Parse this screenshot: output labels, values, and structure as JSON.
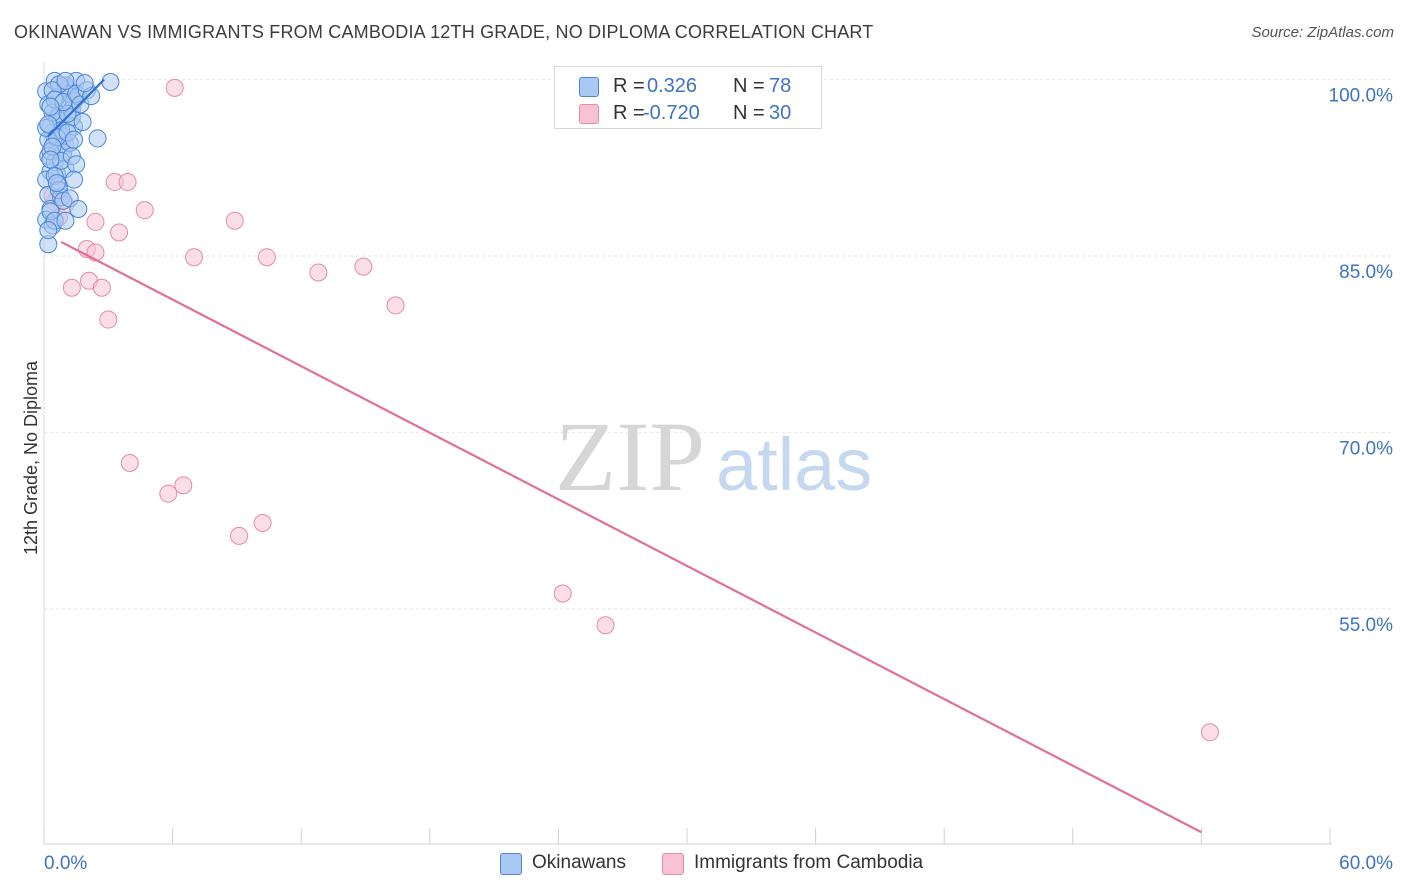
{
  "title": "OKINAWAN VS IMMIGRANTS FROM CAMBODIA 12TH GRADE, NO DIPLOMA CORRELATION CHART",
  "source": "Source: ZipAtlas.com",
  "watermark": {
    "zip": "ZIP",
    "atlas": "atlas"
  },
  "legend_top": [
    {
      "r_label": "R =",
      "r_value": "0.326",
      "n_label": "N =",
      "n_value": "78"
    },
    {
      "r_label": "R =",
      "r_value": "-0.720",
      "n_label": "N =",
      "n_value": "30"
    }
  ],
  "legend_bottom": [
    {
      "label": "Okinawans"
    },
    {
      "label": "Immigrants from Cambodia"
    }
  ],
  "chart_data": {
    "type": "scatter",
    "xlabel": "",
    "ylabel": "12th Grade, No Diploma",
    "xlim": [
      0,
      60
    ],
    "ylim": [
      35,
      101.5
    ],
    "x_tick_labels": [
      "0.0%",
      "60.0%"
    ],
    "y_ticks": [
      100,
      85,
      70,
      55
    ],
    "y_tick_labels": [
      "100.0%",
      "85.0%",
      "70.0%",
      "55.0%"
    ],
    "grid": true,
    "colors": {
      "okinawans_fill": "#a9c8f2",
      "okinawans_stroke": "#4a86d6",
      "okinawans_line": "#2f6fd0",
      "cambodia_fill": "#f7c3d3",
      "cambodia_stroke": "#e58aa8",
      "cambodia_line": "#e0709a",
      "tick_text": "#3d73c4",
      "grid": "#e6e6e6"
    },
    "series": [
      {
        "name": "Okinawans",
        "points": [
          [
            0.1,
            99.0
          ],
          [
            0.2,
            97.9
          ],
          [
            0.3,
            96.0
          ],
          [
            0.4,
            95.5
          ],
          [
            0.5,
            94.8
          ],
          [
            0.6,
            94.0
          ],
          [
            0.2,
            93.5
          ],
          [
            0.3,
            92.2
          ],
          [
            0.1,
            91.5
          ],
          [
            0.2,
            90.2
          ],
          [
            0.3,
            89.0
          ],
          [
            0.1,
            88.1
          ],
          [
            0.4,
            87.6
          ],
          [
            0.2,
            86.0
          ],
          [
            0.5,
            99.9
          ],
          [
            0.6,
            98.5
          ],
          [
            0.7,
            97.0
          ],
          [
            0.8,
            96.5
          ],
          [
            0.9,
            95.2
          ],
          [
            1.0,
            94.4
          ],
          [
            1.1,
            99.2
          ],
          [
            1.2,
            98.0
          ],
          [
            1.3,
            97.5
          ],
          [
            1.4,
            96.0
          ],
          [
            0.5,
            93.0
          ],
          [
            0.6,
            92.0
          ],
          [
            0.7,
            91.0
          ],
          [
            0.8,
            90.0
          ],
          [
            0.3,
            88.8
          ],
          [
            0.5,
            88.0
          ],
          [
            1.0,
            99.5
          ],
          [
            1.2,
            98.8
          ],
          [
            1.4,
            98.2
          ],
          [
            1.5,
            99.9
          ],
          [
            1.6,
            98.6
          ],
          [
            1.3,
            96.8
          ],
          [
            0.9,
            93.8
          ],
          [
            1.0,
            92.4
          ],
          [
            1.2,
            94.6
          ],
          [
            0.6,
            96.7
          ],
          [
            0.8,
            95.7
          ],
          [
            0.4,
            97.2
          ],
          [
            0.2,
            94.9
          ],
          [
            0.3,
            93.9
          ],
          [
            0.1,
            95.9
          ],
          [
            0.7,
            99.6
          ],
          [
            0.4,
            99.1
          ],
          [
            0.5,
            98.3
          ],
          [
            1.1,
            97.1
          ],
          [
            0.9,
            98.1
          ],
          [
            0.3,
            97.7
          ],
          [
            0.2,
            96.2
          ],
          [
            0.6,
            95.1
          ],
          [
            0.4,
            94.3
          ],
          [
            0.8,
            93.1
          ],
          [
            0.5,
            91.8
          ],
          [
            0.7,
            90.6
          ],
          [
            0.9,
            89.7
          ],
          [
            1.0,
            88.0
          ],
          [
            0.2,
            87.2
          ],
          [
            1.5,
            98.8
          ],
          [
            1.7,
            97.9
          ],
          [
            1.8,
            96.4
          ],
          [
            1.1,
            95.5
          ],
          [
            1.3,
            93.5
          ],
          [
            1.4,
            94.9
          ],
          [
            1.2,
            89.9
          ],
          [
            1.6,
            89.0
          ],
          [
            1.5,
            92.8
          ],
          [
            1.4,
            91.5
          ],
          [
            2.0,
            99.1
          ],
          [
            2.2,
            98.6
          ],
          [
            2.5,
            95.0
          ],
          [
            3.1,
            99.8
          ],
          [
            1.0,
            99.9
          ],
          [
            1.9,
            99.7
          ],
          [
            0.3,
            93.2
          ],
          [
            0.6,
            91.2
          ]
        ],
        "trend": [
          [
            0.2,
            95.2
          ],
          [
            2.8,
            100.0
          ]
        ]
      },
      {
        "name": "Immigrants from Cambodia",
        "points": [
          [
            6.1,
            99.3
          ],
          [
            3.3,
            91.3
          ],
          [
            3.9,
            91.3
          ],
          [
            4.7,
            88.9
          ],
          [
            8.9,
            88.0
          ],
          [
            3.5,
            87.0
          ],
          [
            7.0,
            84.9
          ],
          [
            10.4,
            84.9
          ],
          [
            12.8,
            83.6
          ],
          [
            14.9,
            84.1
          ],
          [
            2.0,
            85.6
          ],
          [
            2.4,
            85.3
          ],
          [
            2.1,
            82.9
          ],
          [
            1.3,
            82.3
          ],
          [
            2.7,
            82.3
          ],
          [
            16.4,
            80.8
          ],
          [
            3.0,
            79.6
          ],
          [
            0.5,
            89.6
          ],
          [
            0.7,
            88.3
          ],
          [
            0.4,
            90.1
          ],
          [
            1.0,
            89.4
          ],
          [
            2.4,
            87.9
          ],
          [
            4.0,
            67.4
          ],
          [
            5.8,
            64.8
          ],
          [
            6.5,
            65.5
          ],
          [
            9.1,
            61.2
          ],
          [
            10.2,
            62.3
          ],
          [
            24.2,
            56.3
          ],
          [
            26.2,
            53.6
          ],
          [
            54.4,
            44.5
          ]
        ],
        "trend": [
          [
            0.8,
            86.2
          ],
          [
            54.0,
            36.0
          ]
        ]
      }
    ]
  }
}
